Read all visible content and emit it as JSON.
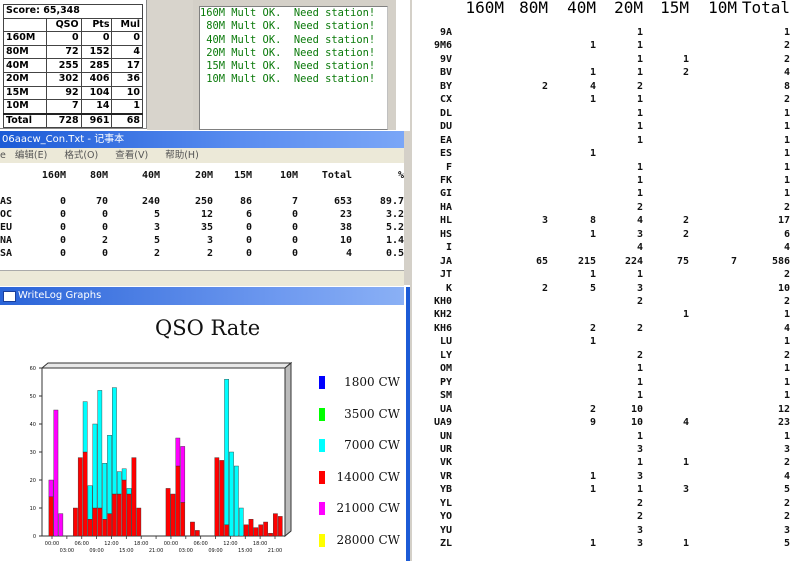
{
  "score_panel": {
    "score_label": "Score: 65,348",
    "headers": [
      "",
      "QSO",
      "Pts",
      "Mul"
    ],
    "rows": [
      [
        "160M",
        "0",
        "0",
        "0"
      ],
      [
        "80M",
        "72",
        "152",
        "4"
      ],
      [
        "40M",
        "255",
        "285",
        "17"
      ],
      [
        "20M",
        "302",
        "406",
        "36"
      ],
      [
        "15M",
        "92",
        "104",
        "10"
      ],
      [
        "10M",
        "7",
        "14",
        "1"
      ],
      [
        "Total",
        "728",
        "961",
        "68"
      ]
    ]
  },
  "messages": {
    "lines": [
      "160M Mult OK.  Need station!",
      " 80M Mult OK.  Need station!",
      " 40M Mult OK.  Need station!",
      " 20M Mult OK.  Need station!",
      " 15M Mult OK.  Need station!",
      " 10M Mult OK.  Need station!"
    ]
  },
  "notepad": {
    "title": "06aacw_Con.Txt - 记事本",
    "menu": [
      "编辑(E)",
      "格式(O)",
      "查看(V)",
      "帮助(H)"
    ],
    "menu_partial": "e",
    "headers": [
      "",
      "160M",
      "80M",
      "40M",
      "20M",
      "15M",
      "10M",
      "Total",
      "%"
    ],
    "rows": [
      [
        "AS",
        "0",
        "70",
        "240",
        "250",
        "86",
        "7",
        "653",
        "89.7"
      ],
      [
        "OC",
        "0",
        "0",
        "5",
        "12",
        "6",
        "0",
        "23",
        "3.2"
      ],
      [
        "EU",
        "0",
        "0",
        "3",
        "35",
        "0",
        "0",
        "38",
        "5.2"
      ],
      [
        "NA",
        "0",
        "2",
        "5",
        "3",
        "0",
        "0",
        "10",
        "1.4"
      ],
      [
        "SA",
        "0",
        "0",
        "2",
        "2",
        "0",
        "0",
        "4",
        "0.5"
      ]
    ]
  },
  "graphs": {
    "window_title": "WriteLog Graphs",
    "title": "QSO Rate",
    "legend": [
      {
        "label": "1800 CW",
        "color": "#0000ff"
      },
      {
        "label": "3500 CW",
        "color": "#00ff00"
      },
      {
        "label": "7000 CW",
        "color": "#00ffff"
      },
      {
        "label": "14000 CW",
        "color": "#ff0000"
      },
      {
        "label": "21000 CW",
        "color": "#ff00ff"
      },
      {
        "label": "28000 CW",
        "color": "#ffff00"
      }
    ]
  },
  "chart_data": {
    "type": "bar",
    "title": "QSO Rate",
    "ylim": [
      0,
      60
    ],
    "y_ticks": [
      "0",
      "10",
      "20",
      "30",
      "40",
      "50",
      "60"
    ],
    "x_ticks_top": [
      "00:00",
      "06:00",
      "12:00",
      "18:00",
      "00:00",
      "06:00",
      "12:00",
      "18:00"
    ],
    "x_ticks_bottom": [
      "03:00",
      "09:00",
      "15:00",
      "21:00",
      "03:00",
      "09:00",
      "15:00",
      "21:00"
    ],
    "series_colors": {
      "3500": "#00ff00",
      "7000": "#00ffff",
      "14000": "#ff0000",
      "21000": "#ff00ff"
    },
    "bars": [
      [
        0,
        0,
        0,
        0
      ],
      [
        0,
        0,
        14,
        6
      ],
      [
        0,
        0,
        0,
        45
      ],
      [
        0,
        0,
        0,
        8
      ],
      [
        0,
        0,
        0,
        0
      ],
      [
        0,
        0,
        0,
        0
      ],
      [
        0,
        0,
        10,
        0
      ],
      [
        0,
        0,
        28,
        0
      ],
      [
        0,
        18,
        30,
        0
      ],
      [
        0,
        12,
        6,
        0
      ],
      [
        0,
        30,
        10,
        0
      ],
      [
        0,
        42,
        10,
        0
      ],
      [
        0,
        20,
        6,
        0
      ],
      [
        0,
        28,
        8,
        0
      ],
      [
        0,
        38,
        15,
        0
      ],
      [
        0,
        8,
        15,
        0
      ],
      [
        0,
        4,
        20,
        0
      ],
      [
        0,
        2,
        15,
        0
      ],
      [
        0,
        0,
        28,
        0
      ],
      [
        0,
        0,
        10,
        0
      ],
      [
        0,
        0,
        0,
        0
      ],
      [
        0,
        0,
        0,
        0
      ],
      [
        0,
        0,
        0,
        0
      ],
      [
        0,
        0,
        0,
        0
      ],
      [
        0,
        0,
        0,
        0
      ],
      [
        0,
        0,
        17,
        0
      ],
      [
        0,
        0,
        15,
        0
      ],
      [
        0,
        0,
        25,
        10
      ],
      [
        0,
        0,
        12,
        20
      ],
      [
        0,
        0,
        0,
        0
      ],
      [
        0,
        0,
        5,
        0
      ],
      [
        0,
        0,
        2,
        0
      ],
      [
        0,
        0,
        0,
        0
      ],
      [
        0,
        0,
        0,
        0
      ],
      [
        0,
        0,
        0,
        0
      ],
      [
        0,
        0,
        28,
        0
      ],
      [
        0,
        0,
        27,
        0
      ],
      [
        0,
        52,
        4,
        0
      ],
      [
        0,
        30,
        0,
        0
      ],
      [
        0,
        25,
        0,
        0
      ],
      [
        0,
        10,
        0,
        0
      ],
      [
        0,
        0,
        4,
        0
      ],
      [
        0,
        0,
        6,
        0
      ],
      [
        0,
        0,
        3,
        0
      ],
      [
        0,
        0,
        4,
        0
      ],
      [
        0,
        0,
        5,
        0
      ],
      [
        0,
        0,
        1,
        0
      ],
      [
        0,
        0,
        8,
        0
      ],
      [
        0,
        0,
        7,
        0
      ]
    ]
  },
  "right_table": {
    "headers": [
      "",
      "160M",
      "80M",
      "40M",
      "20M",
      "15M",
      "10M",
      "Total"
    ],
    "rows": [
      [
        "9A",
        "",
        "",
        "",
        "1",
        "",
        "",
        "1"
      ],
      [
        "9M6",
        "",
        "",
        "1",
        "1",
        "",
        "",
        "2"
      ],
      [
        "9V",
        "",
        "",
        "",
        "1",
        "1",
        "",
        "2"
      ],
      [
        "BV",
        "",
        "",
        "1",
        "1",
        "2",
        "",
        "4"
      ],
      [
        "BY",
        "",
        "2",
        "4",
        "2",
        "",
        "",
        "8"
      ],
      [
        "CX",
        "",
        "",
        "1",
        "1",
        "",
        "",
        "2"
      ],
      [
        "DL",
        "",
        "",
        "",
        "1",
        "",
        "",
        "1"
      ],
      [
        "DU",
        "",
        "",
        "",
        "1",
        "",
        "",
        "1"
      ],
      [
        "EA",
        "",
        "",
        "",
        "1",
        "",
        "",
        "1"
      ],
      [
        "ES",
        "",
        "",
        "1",
        "",
        "",
        "",
        "1"
      ],
      [
        "F",
        "",
        "",
        "",
        "1",
        "",
        "",
        "1"
      ],
      [
        "FK",
        "",
        "",
        "",
        "1",
        "",
        "",
        "1"
      ],
      [
        "GI",
        "",
        "",
        "",
        "1",
        "",
        "",
        "1"
      ],
      [
        "HA",
        "",
        "",
        "",
        "2",
        "",
        "",
        "2"
      ],
      [
        "HL",
        "",
        "3",
        "8",
        "4",
        "2",
        "",
        "17"
      ],
      [
        "HS",
        "",
        "",
        "1",
        "3",
        "2",
        "",
        "6"
      ],
      [
        "I",
        "",
        "",
        "",
        "4",
        "",
        "",
        "4"
      ],
      [
        "JA",
        "",
        "65",
        "215",
        "224",
        "75",
        "7",
        "586"
      ],
      [
        "JT",
        "",
        "",
        "1",
        "1",
        "",
        "",
        "2"
      ],
      [
        "K",
        "",
        "2",
        "5",
        "3",
        "",
        "",
        "10"
      ],
      [
        "KH0",
        "",
        "",
        "",
        "2",
        "",
        "",
        "2"
      ],
      [
        "KH2",
        "",
        "",
        "",
        "",
        "1",
        "",
        "1"
      ],
      [
        "KH6",
        "",
        "",
        "2",
        "2",
        "",
        "",
        "4"
      ],
      [
        "LU",
        "",
        "",
        "1",
        "",
        "",
        "",
        "1"
      ],
      [
        "LY",
        "",
        "",
        "",
        "2",
        "",
        "",
        "2"
      ],
      [
        "OM",
        "",
        "",
        "",
        "1",
        "",
        "",
        "1"
      ],
      [
        "PY",
        "",
        "",
        "",
        "1",
        "",
        "",
        "1"
      ],
      [
        "SM",
        "",
        "",
        "",
        "1",
        "",
        "",
        "1"
      ],
      [
        "UA",
        "",
        "",
        "2",
        "10",
        "",
        "",
        "12"
      ],
      [
        "UA9",
        "",
        "",
        "9",
        "10",
        "4",
        "",
        "23"
      ],
      [
        "UN",
        "",
        "",
        "",
        "1",
        "",
        "",
        "1"
      ],
      [
        "UR",
        "",
        "",
        "",
        "3",
        "",
        "",
        "3"
      ],
      [
        "VK",
        "",
        "",
        "",
        "1",
        "1",
        "",
        "2"
      ],
      [
        "VR",
        "",
        "",
        "1",
        "3",
        "",
        "",
        "4"
      ],
      [
        "YB",
        "",
        "",
        "1",
        "1",
        "3",
        "",
        "5"
      ],
      [
        "YL",
        "",
        "",
        "",
        "2",
        "",
        "",
        "2"
      ],
      [
        "YO",
        "",
        "",
        "",
        "2",
        "",
        "",
        "2"
      ],
      [
        "YU",
        "",
        "",
        "",
        "3",
        "",
        "",
        "3"
      ],
      [
        "ZL",
        "",
        "",
        "1",
        "3",
        "1",
        "",
        "5"
      ]
    ]
  }
}
